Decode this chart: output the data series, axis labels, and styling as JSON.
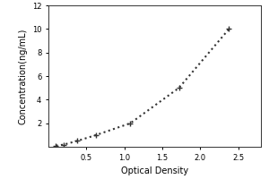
{
  "x": [
    0.1,
    0.2,
    0.38,
    0.63,
    1.08,
    1.72,
    2.38
  ],
  "y": [
    0.1,
    0.18,
    0.5,
    1.0,
    2.0,
    5.0,
    10.0
  ],
  "xlabel": "Optical Density",
  "ylabel": "Concentration(ng/mL)",
  "xlim": [
    0,
    2.8
  ],
  "ylim": [
    0,
    12
  ],
  "xticks": [
    0.5,
    1.0,
    1.5,
    2.0,
    2.5
  ],
  "yticks": [
    2,
    4,
    6,
    8,
    10,
    12
  ],
  "line_color": "#333333",
  "marker": "+",
  "marker_color": "#333333",
  "marker_size": 5,
  "line_style": "dotted",
  "line_width": 1.5,
  "bg_color": "#ffffff",
  "plot_bg_color": "#ffffff",
  "xlabel_fontsize": 7,
  "ylabel_fontsize": 7,
  "tick_fontsize": 6
}
